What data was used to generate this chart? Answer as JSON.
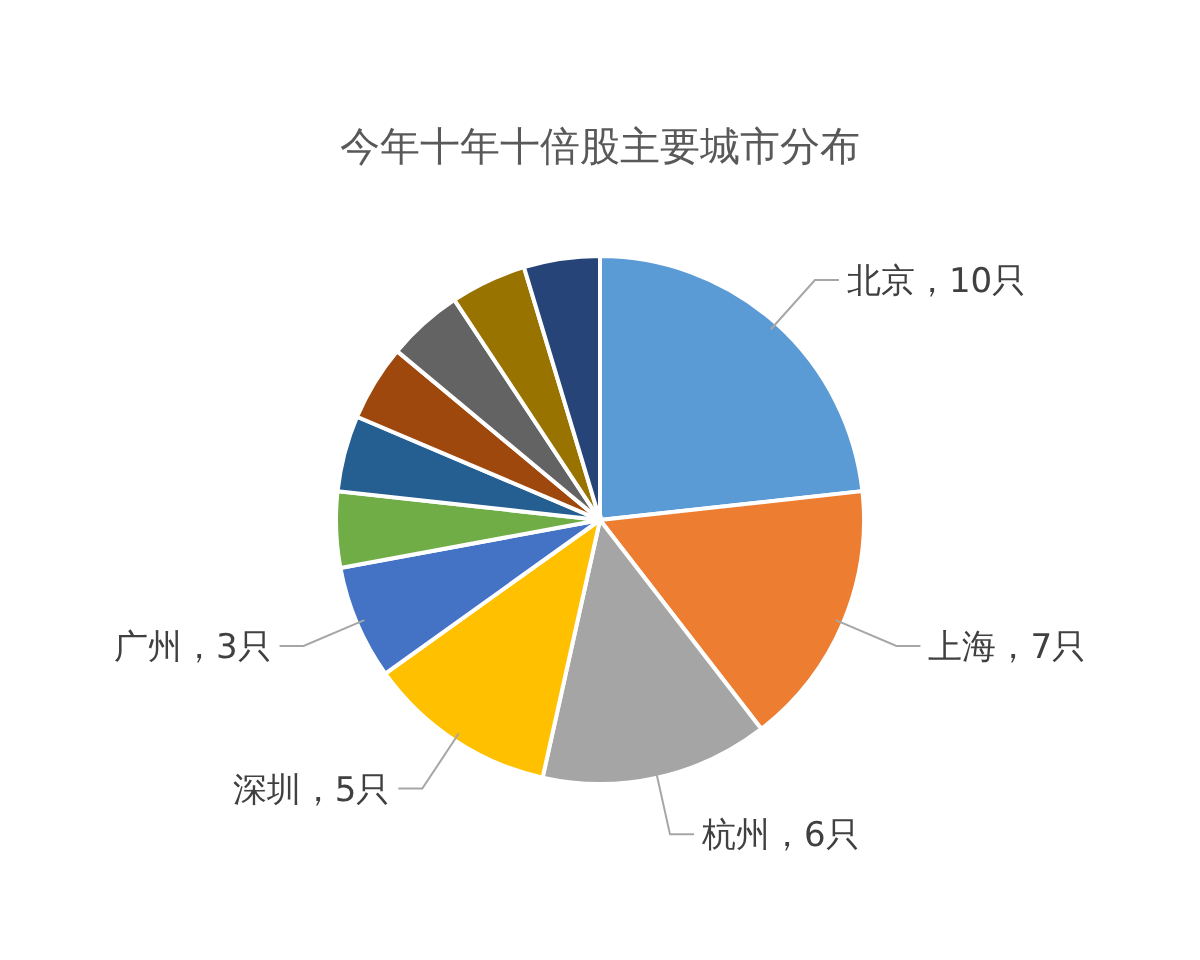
{
  "chart_data": {
    "type": "pie",
    "title": "今年十年十倍股主要城市分布",
    "categories": [
      "北京，10只",
      "上海，7只",
      "杭州，6只",
      "深圳，5只",
      "广州，3只",
      null,
      null,
      null,
      null,
      null,
      null
    ],
    "values": [
      10,
      7,
      6,
      5,
      3,
      2,
      2,
      2,
      2,
      2,
      2
    ],
    "colors": [
      "#5b9bd5",
      "#ed7d31",
      "#a5a5a5",
      "#ffc000",
      "#4472c4",
      "#70ad47",
      "#255e91",
      "#9e480e",
      "#636363",
      "#997300",
      "#264478"
    ],
    "legend": false
  }
}
